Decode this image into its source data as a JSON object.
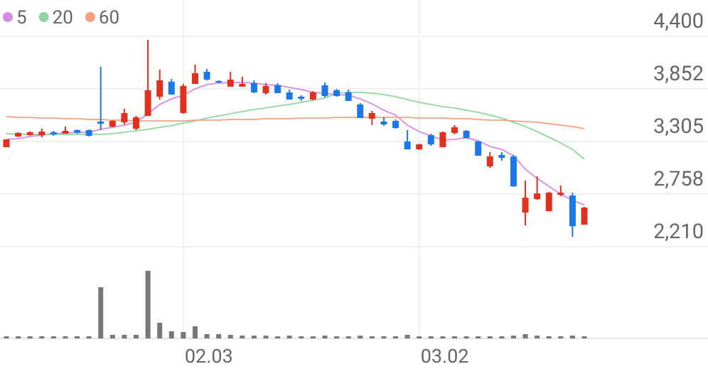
{
  "chart_data": {
    "type": "candlestick",
    "categories": [
      null,
      null,
      null,
      null,
      null,
      null,
      null,
      null,
      null,
      null,
      null,
      null,
      null,
      null,
      null,
      "02.03",
      null,
      null,
      null,
      null,
      null,
      null,
      null,
      null,
      null,
      null,
      null,
      null,
      null,
      null,
      null,
      null,
      null,
      null,
      null,
      "03.02",
      null,
      null,
      null,
      null,
      null,
      null,
      null,
      null,
      null,
      null,
      null,
      null,
      null,
      null
    ],
    "open": [
      3246,
      3357,
      3371,
      3371,
      3401,
      3386,
      3423,
      3423,
      3512,
      3460,
      3505,
      3438,
      3571,
      3771,
      3927,
      3601,
      3904,
      4030,
      3934,
      3875,
      3875,
      3912,
      3808,
      3890,
      3816,
      3771,
      3741,
      3890,
      3838,
      3816,
      3690,
      3542,
      3512,
      3519,
      3305,
      3223,
      3371,
      3246,
      3394,
      3416,
      3305,
      3046,
      3164,
      3149,
      2565,
      2706,
      2580,
      2750,
      2742,
      2439
    ],
    "high": [
      3327,
      3400,
      3410,
      3438,
      3416,
      3460,
      3430,
      3430,
      4082,
      3527,
      3645,
      3571,
      4363,
      4052,
      3956,
      3904,
      4104,
      4060,
      3941,
      4030,
      3978,
      3941,
      3912,
      3912,
      3845,
      3786,
      3830,
      3919,
      3852,
      3845,
      3704,
      3623,
      3556,
      3534,
      3423,
      3282,
      3386,
      3408,
      3475,
      3423,
      3312,
      3194,
      3194,
      3164,
      2898,
      2942,
      2780,
      2846,
      2772,
      2624
    ],
    "low": [
      3246,
      3350,
      3365,
      3349,
      3364,
      3386,
      3386,
      3357,
      3423,
      3453,
      3482,
      3423,
      3571,
      3741,
      3793,
      3593,
      3904,
      3941,
      3912,
      3875,
      3875,
      3808,
      3793,
      3808,
      3741,
      3727,
      3734,
      3764,
      3771,
      3727,
      3549,
      3475,
      3468,
      3438,
      3223,
      3216,
      3260,
      3246,
      3379,
      3334,
      3157,
      3031,
      3105,
      2832,
      2432,
      2698,
      2580,
      2735,
      2313,
      2439
    ],
    "close": [
      3327,
      3394,
      3401,
      3408,
      3379,
      3416,
      3394,
      3364,
      3490,
      3519,
      3601,
      3556,
      3838,
      3941,
      3793,
      3882,
      4015,
      3949,
      3919,
      3949,
      3904,
      3816,
      3882,
      3808,
      3741,
      3749,
      3816,
      3778,
      3778,
      3727,
      3549,
      3601,
      3482,
      3445,
      3223,
      3275,
      3275,
      3401,
      3453,
      3342,
      3157,
      3149,
      3134,
      2839,
      2720,
      2765,
      2772,
      2772,
      2424,
      2617
    ],
    "up_color": "#e0301e",
    "down_color": "#1c78e6",
    "series": [
      {
        "name": "5",
        "color": "#d98be3",
        "values": [
          3327,
          3334,
          3357,
          3371,
          3386,
          3394,
          3401,
          3401,
          3431,
          3453,
          3475,
          3505,
          3593,
          3690,
          3749,
          3786,
          3852,
          3897,
          3912,
          3919,
          3919,
          3912,
          3897,
          3889,
          3867,
          3845,
          3815,
          3808,
          3793,
          3786,
          3749,
          3697,
          3630,
          3579,
          3475,
          3408,
          3364,
          3320,
          3327,
          3342,
          3312,
          3253,
          3223,
          3157,
          3016,
          2920,
          2839,
          2757,
          2691,
          2646
        ]
      },
      {
        "name": "20",
        "color": "#8fd6a0",
        "values": [
          3386,
          3379,
          3379,
          3379,
          3379,
          3379,
          3379,
          3379,
          3379,
          3386,
          3401,
          3416,
          3431,
          3453,
          3468,
          3497,
          3519,
          3549,
          3571,
          3593,
          3616,
          3638,
          3653,
          3675,
          3690,
          3712,
          3734,
          3756,
          3808,
          3815,
          3815,
          3808,
          3793,
          3771,
          3741,
          3712,
          3690,
          3667,
          3653,
          3630,
          3608,
          3579,
          3549,
          3505,
          3460,
          3408,
          3349,
          3290,
          3223,
          3120
        ]
      },
      {
        "name": "60",
        "color": "#f2a27e",
        "values": [
          3564,
          3556,
          3556,
          3549,
          3549,
          3542,
          3542,
          3534,
          3534,
          3527,
          3527,
          3519,
          3519,
          3519,
          3519,
          3519,
          3527,
          3527,
          3527,
          3534,
          3534,
          3534,
          3542,
          3542,
          3542,
          3549,
          3549,
          3549,
          3556,
          3556,
          3556,
          3556,
          3556,
          3556,
          3556,
          3549,
          3549,
          3549,
          3542,
          3542,
          3534,
          3527,
          3527,
          3519,
          3512,
          3505,
          3490,
          3475,
          3460,
          3438
        ]
      }
    ],
    "volume": [
      3,
      3,
      3,
      3,
      3,
      3,
      3,
      3,
      72,
      5,
      5,
      5,
      95,
      22,
      10,
      9,
      17,
      6,
      6,
      5,
      4,
      4,
      4,
      3,
      4,
      3,
      3,
      4,
      3,
      3,
      4,
      3,
      3,
      3,
      5,
      3,
      3,
      3,
      3,
      3,
      3,
      3,
      3,
      4,
      6,
      4,
      3,
      3,
      4,
      3
    ],
    "volume_color": "#777777",
    "volume_lim": [
      0,
      100
    ],
    "ylim": [
      2210,
      4777
    ],
    "yticks": [
      {
        "value": 4400,
        "label": "4,400"
      },
      {
        "value": 3852,
        "label": "3,852"
      },
      {
        "value": 3305,
        "label": "3,305"
      },
      {
        "value": 2758,
        "label": "2,758"
      },
      {
        "value": 2210,
        "label": "2,210"
      }
    ],
    "grid": true
  }
}
